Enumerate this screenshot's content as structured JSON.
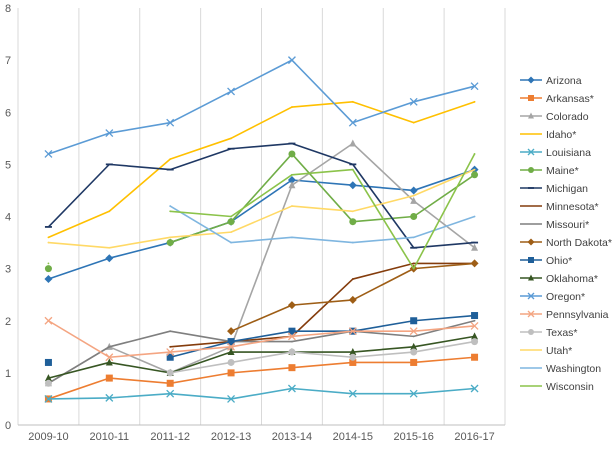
{
  "chart_data": {
    "type": "line",
    "title": "",
    "xlabel": "",
    "ylabel": "",
    "categories": [
      "2009-10",
      "2010-11",
      "2011-12",
      "2012-13",
      "2013-14",
      "2014-15",
      "2015-16",
      "2016-17"
    ],
    "ylim": [
      0,
      8
    ],
    "yticks": [
      0,
      1,
      2,
      3,
      4,
      5,
      6,
      7,
      8
    ],
    "grid": "vertical",
    "legend_position": "right",
    "series": [
      {
        "name": "Arizona",
        "color": "#2E75B6",
        "marker": "diamond",
        "values": [
          2.8,
          3.2,
          3.5,
          3.9,
          4.7,
          4.6,
          4.5,
          4.9
        ]
      },
      {
        "name": "Arkansas*",
        "color": "#ED7D31",
        "marker": "square",
        "values": [
          0.5,
          0.9,
          0.8,
          1.0,
          1.1,
          1.2,
          1.2,
          1.3
        ]
      },
      {
        "name": "Colorado",
        "color": "#A5A5A5",
        "marker": "triangle",
        "values": [
          0.8,
          1.5,
          1.0,
          1.5,
          4.6,
          5.4,
          4.3,
          3.4
        ]
      },
      {
        "name": "Idaho*",
        "color": "#FFC000",
        "marker": "none",
        "values": [
          3.6,
          4.1,
          5.1,
          5.5,
          6.1,
          6.2,
          5.8,
          6.2
        ]
      },
      {
        "name": "Louisiana",
        "color": "#4BACC6",
        "marker": "x",
        "values": [
          0.5,
          0.52,
          0.6,
          0.5,
          0.7,
          0.6,
          0.6,
          0.7
        ]
      },
      {
        "name": "Maine*",
        "color": "#70AD47",
        "marker": "circle",
        "values": [
          3.0,
          null,
          3.5,
          3.9,
          5.2,
          3.9,
          4.0,
          4.8
        ]
      },
      {
        "name": "Michigan",
        "color": "#1F3864",
        "marker": "dash",
        "values": [
          3.8,
          5.0,
          4.9,
          5.3,
          5.4,
          5.0,
          3.4,
          3.5
        ]
      },
      {
        "name": "Minnesota*",
        "color": "#843C0C",
        "marker": "none",
        "values": [
          null,
          null,
          1.5,
          1.6,
          1.7,
          2.8,
          3.1,
          3.1
        ]
      },
      {
        "name": "Missouri*",
        "color": "#7F7F7F",
        "marker": "none",
        "values": [
          0.8,
          1.5,
          1.8,
          1.6,
          1.6,
          1.8,
          1.7,
          2.0
        ]
      },
      {
        "name": "North Dakota*",
        "color": "#9E5E16",
        "marker": "diamond",
        "values": [
          null,
          null,
          null,
          1.8,
          2.3,
          2.4,
          3.0,
          3.1
        ]
      },
      {
        "name": "Ohio*",
        "color": "#1F5F99",
        "marker": "square",
        "values": [
          1.2,
          null,
          1.3,
          1.6,
          1.8,
          1.8,
          2.0,
          2.1
        ]
      },
      {
        "name": "Oklahoma*",
        "color": "#375623",
        "marker": "triangle",
        "values": [
          0.9,
          1.2,
          1.0,
          1.4,
          1.4,
          1.4,
          1.5,
          1.7
        ]
      },
      {
        "name": "Oregon*",
        "color": "#5B9BD5",
        "marker": "x",
        "values": [
          5.2,
          5.6,
          5.8,
          6.4,
          7.0,
          5.8,
          6.2,
          6.5
        ]
      },
      {
        "name": "Pennsylvania",
        "color": "#F4A582",
        "marker": "x",
        "values": [
          2.0,
          1.3,
          1.4,
          1.5,
          1.7,
          1.8,
          1.8,
          1.9
        ]
      },
      {
        "name": "Texas*",
        "color": "#BFBFBF",
        "marker": "circle",
        "values": [
          0.8,
          null,
          1.0,
          1.2,
          1.4,
          1.3,
          1.4,
          1.6
        ]
      },
      {
        "name": "Utah*",
        "color": "#FFD966",
        "marker": "none",
        "values": [
          3.5,
          3.4,
          3.6,
          3.7,
          4.2,
          4.1,
          4.4,
          4.9
        ]
      },
      {
        "name": "Washington",
        "color": "#7FB6E0",
        "marker": "none",
        "values": [
          null,
          null,
          4.2,
          3.5,
          3.6,
          3.5,
          3.6,
          4.0
        ]
      },
      {
        "name": "Wisconsin",
        "color": "#8BC34A",
        "marker": "none",
        "values": [
          3.1,
          null,
          4.1,
          4.0,
          4.8,
          4.9,
          3.0,
          5.2
        ]
      }
    ]
  }
}
